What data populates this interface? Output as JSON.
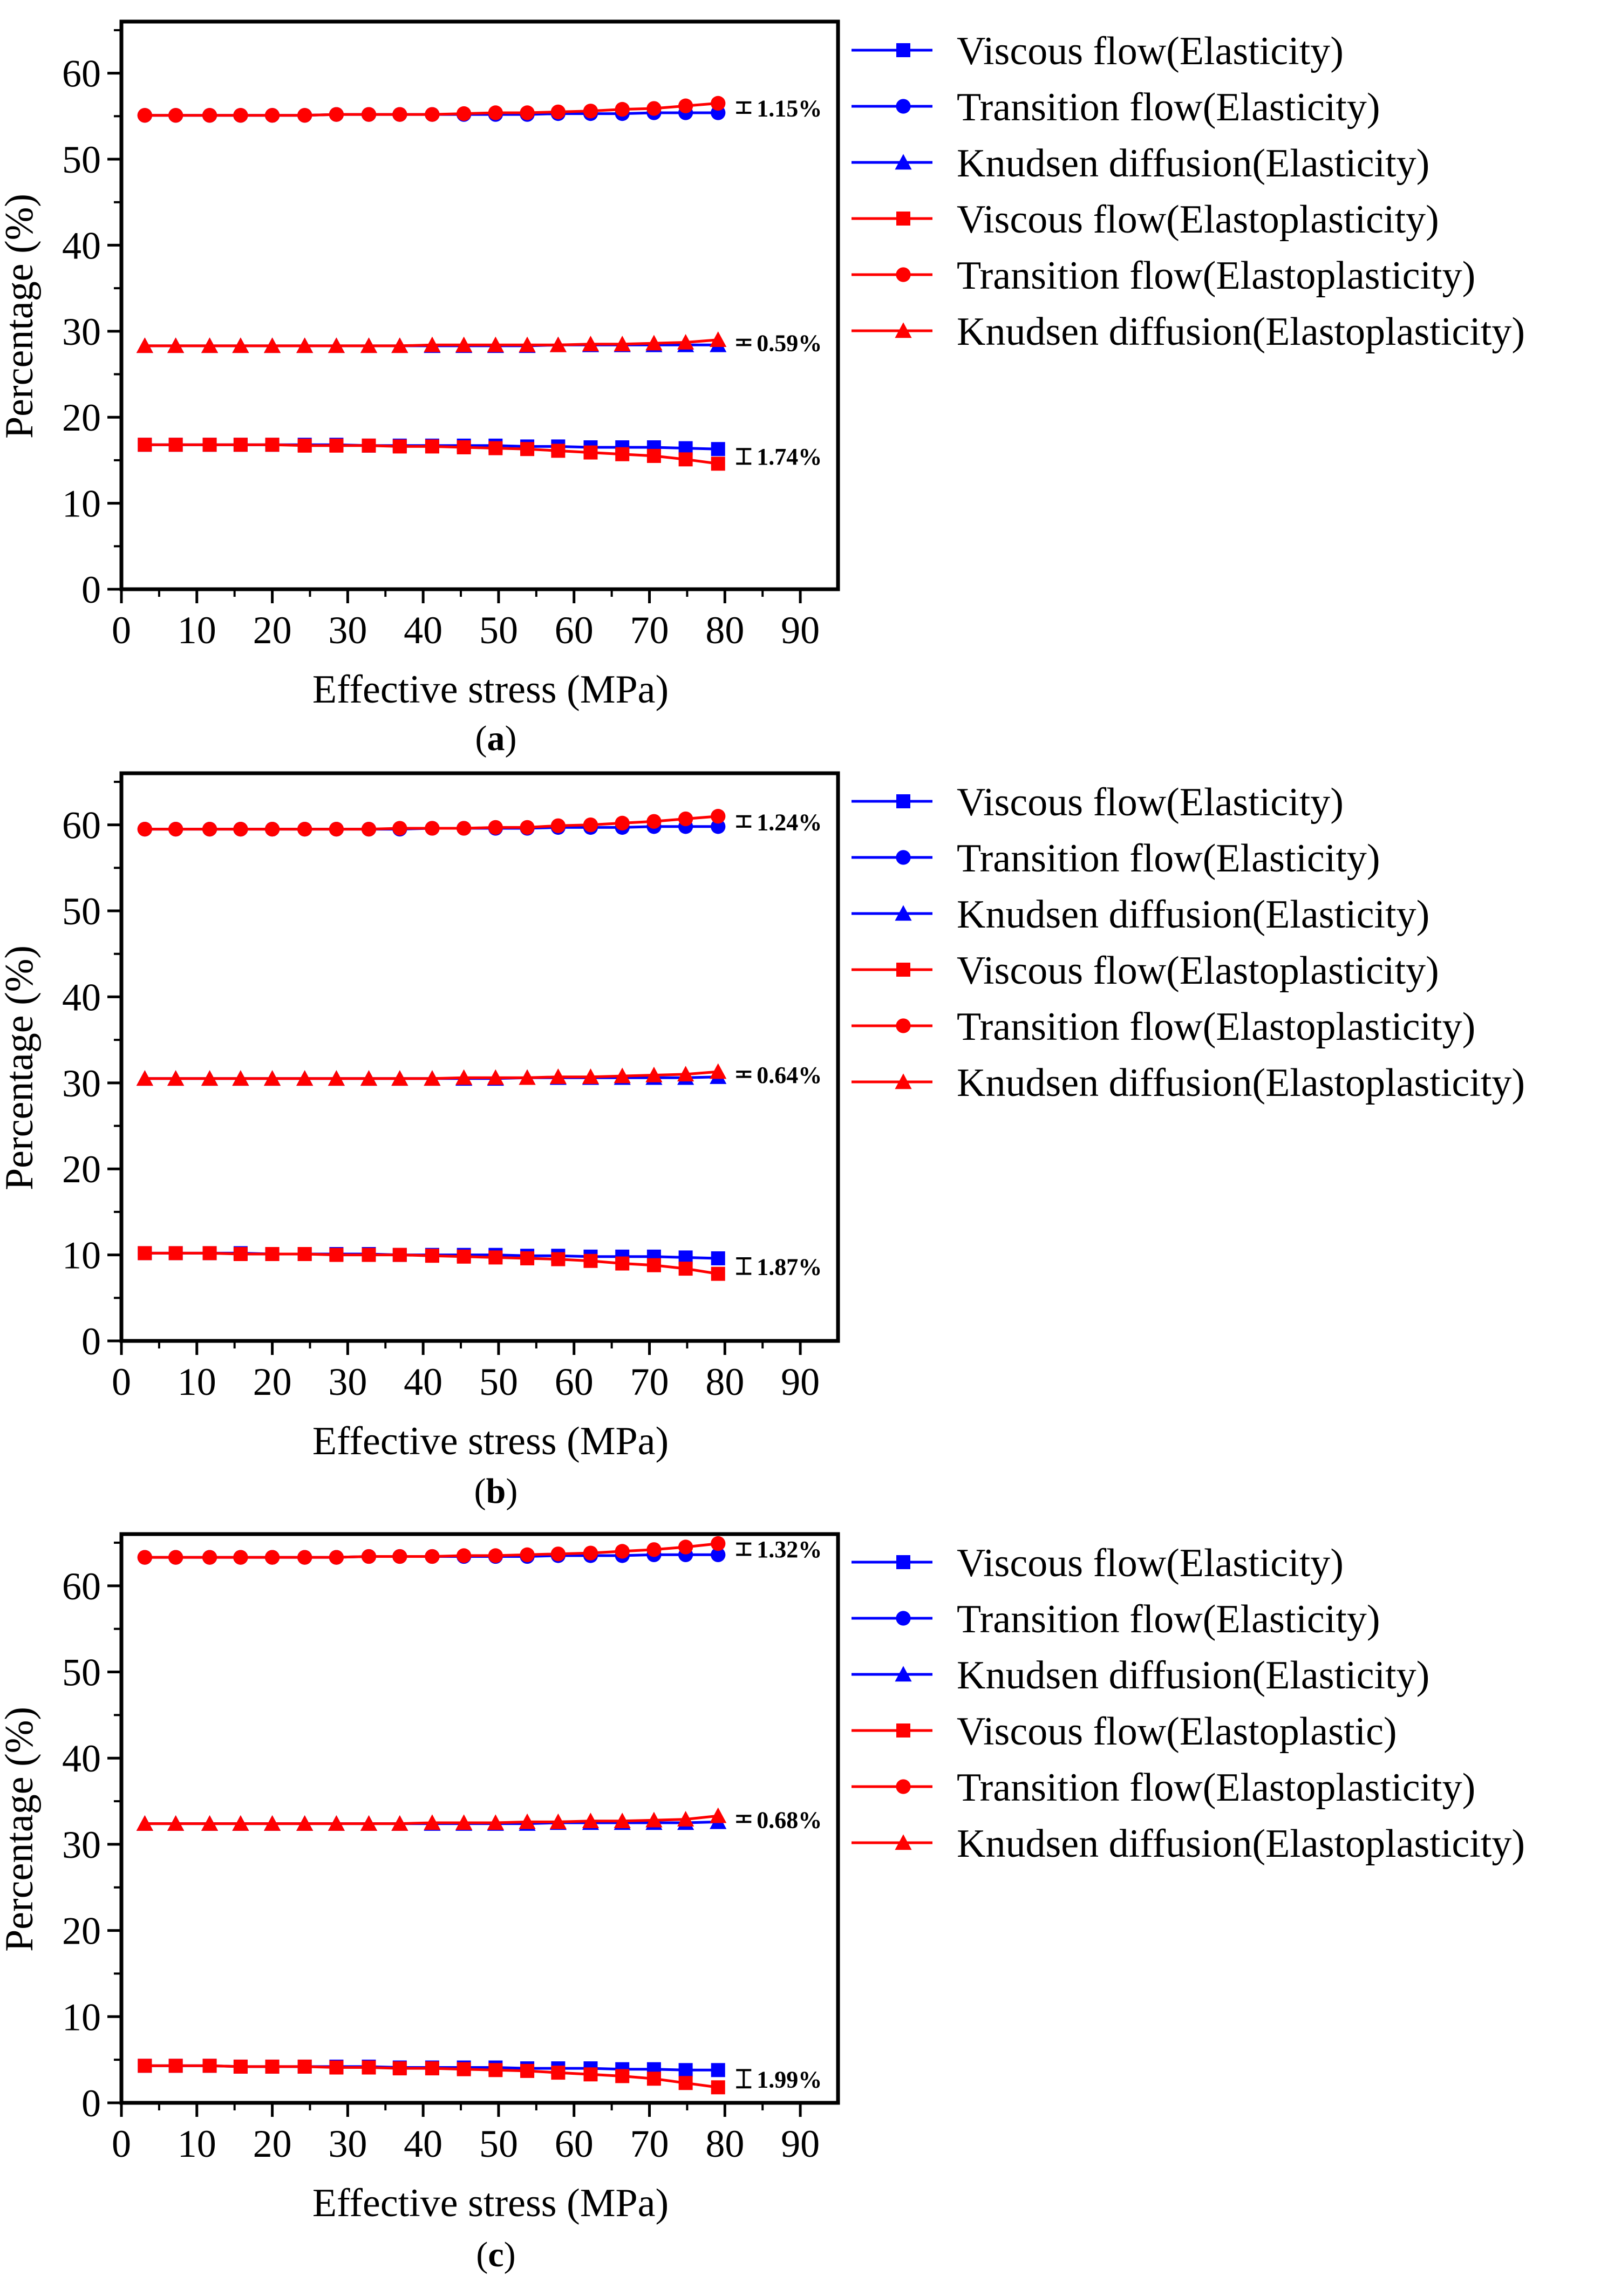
{
  "figure": {
    "panels": [
      "a",
      "b",
      "c"
    ]
  },
  "colors": {
    "elasticity": "#0000FF",
    "elastoplasticity": "#FF0000",
    "axis": "#000000",
    "errorbar": "#000000"
  },
  "chart_data": [
    {
      "panel_label": "a",
      "caption": {
        "open": "(",
        "letter": "a",
        "close": ")"
      },
      "type": "line",
      "xlabel": "Effective stress (MPa)",
      "ylabel": "Percentage (%)",
      "xlim": [
        0,
        95
      ],
      "ylim": [
        0,
        66
      ],
      "xticks": [
        0,
        10,
        20,
        30,
        40,
        50,
        60,
        70,
        80,
        90
      ],
      "yticks": [
        0,
        10,
        20,
        30,
        40,
        50,
        60
      ],
      "grid": false,
      "legend_position": "right",
      "x": [
        3.1,
        7.2,
        11.7,
        15.8,
        20.0,
        24.3,
        28.5,
        32.8,
        36.9,
        41.2,
        45.4,
        49.6,
        53.8,
        57.9,
        62.2,
        66.4,
        70.6,
        74.8,
        79.1
      ],
      "series": [
        {
          "name": "Viscous flow(Elasticity)",
          "color": "#0000FF",
          "marker": "square",
          "values": [
            16.8,
            16.8,
            16.8,
            16.8,
            16.8,
            16.8,
            16.8,
            16.7,
            16.7,
            16.7,
            16.7,
            16.7,
            16.6,
            16.6,
            16.5,
            16.5,
            16.5,
            16.4,
            16.3
          ]
        },
        {
          "name": "Transition flow(Elasticity)",
          "color": "#0000FF",
          "marker": "circle",
          "values": [
            55.1,
            55.1,
            55.1,
            55.1,
            55.1,
            55.1,
            55.2,
            55.2,
            55.2,
            55.2,
            55.2,
            55.2,
            55.2,
            55.3,
            55.3,
            55.3,
            55.4,
            55.4,
            55.4
          ]
        },
        {
          "name": "Knudsen diffusion(Elasticity)",
          "color": "#0000FF",
          "marker": "triangle",
          "values": [
            28.3,
            28.3,
            28.3,
            28.3,
            28.3,
            28.3,
            28.3,
            28.3,
            28.3,
            28.3,
            28.3,
            28.3,
            28.3,
            28.4,
            28.4,
            28.4,
            28.4,
            28.4,
            28.4
          ]
        },
        {
          "name": "Viscous flow(Elastoplasticity)",
          "color": "#FF0000",
          "marker": "square",
          "values": [
            16.8,
            16.8,
            16.8,
            16.8,
            16.8,
            16.7,
            16.7,
            16.7,
            16.6,
            16.6,
            16.5,
            16.4,
            16.3,
            16.1,
            15.9,
            15.7,
            15.5,
            15.1,
            14.6
          ]
        },
        {
          "name": "Transition flow(Elastoplasticity)",
          "color": "#FF0000",
          "marker": "circle",
          "values": [
            55.1,
            55.1,
            55.1,
            55.1,
            55.1,
            55.1,
            55.2,
            55.2,
            55.2,
            55.2,
            55.3,
            55.4,
            55.4,
            55.5,
            55.6,
            55.8,
            55.9,
            56.2,
            56.5
          ]
        },
        {
          "name": "Knudsen diffusion(Elastoplasticity)",
          "color": "#FF0000",
          "marker": "triangle",
          "values": [
            28.3,
            28.3,
            28.3,
            28.3,
            28.3,
            28.3,
            28.3,
            28.3,
            28.3,
            28.4,
            28.4,
            28.4,
            28.4,
            28.4,
            28.5,
            28.5,
            28.6,
            28.7,
            29.0
          ]
        }
      ],
      "annotations": [
        {
          "text": "1.15%",
          "x": 82.5,
          "y": 56.0,
          "err_low": 55.4,
          "err_high": 56.6
        },
        {
          "text": "0.59%",
          "x": 82.5,
          "y": 28.7,
          "err_low": 28.4,
          "err_high": 29.0
        },
        {
          "text": "1.74%",
          "x": 82.5,
          "y": 15.5,
          "err_low": 14.6,
          "err_high": 16.3
        }
      ]
    },
    {
      "panel_label": "b",
      "caption": {
        "open": "(",
        "letter": "b",
        "close": ")"
      },
      "type": "line",
      "xlabel": "Effective stress (MPa)",
      "ylabel": "Percentage (%)",
      "xlim": [
        0,
        95
      ],
      "ylim": [
        0,
        66
      ],
      "xticks": [
        0,
        10,
        20,
        30,
        40,
        50,
        60,
        70,
        80,
        90
      ],
      "yticks": [
        0,
        10,
        20,
        30,
        40,
        50,
        60
      ],
      "grid": false,
      "legend_position": "right",
      "x": [
        3.1,
        7.2,
        11.7,
        15.8,
        20.0,
        24.3,
        28.5,
        32.8,
        36.9,
        41.2,
        45.4,
        49.6,
        53.8,
        57.9,
        62.2,
        66.4,
        70.6,
        74.8,
        79.1
      ],
      "series": [
        {
          "name": "Viscous flow(Elasticity)",
          "color": "#0000FF",
          "marker": "square",
          "values": [
            10.2,
            10.2,
            10.2,
            10.2,
            10.1,
            10.1,
            10.1,
            10.1,
            10.0,
            10.0,
            10.0,
            10.0,
            9.9,
            9.9,
            9.8,
            9.8,
            9.8,
            9.7,
            9.6
          ]
        },
        {
          "name": "Transition flow(Elasticity)",
          "color": "#0000FF",
          "marker": "circle",
          "values": [
            59.5,
            59.5,
            59.5,
            59.5,
            59.5,
            59.5,
            59.5,
            59.5,
            59.5,
            59.6,
            59.6,
            59.6,
            59.6,
            59.7,
            59.7,
            59.7,
            59.8,
            59.8,
            59.8
          ]
        },
        {
          "name": "Knudsen diffusion(Elasticity)",
          "color": "#0000FF",
          "marker": "triangle",
          "values": [
            30.5,
            30.5,
            30.5,
            30.5,
            30.5,
            30.5,
            30.5,
            30.5,
            30.5,
            30.5,
            30.5,
            30.5,
            30.6,
            30.6,
            30.6,
            30.6,
            30.6,
            30.6,
            30.7
          ]
        },
        {
          "name": "Viscous flow(Elastoplasticity)",
          "color": "#FF0000",
          "marker": "square",
          "values": [
            10.2,
            10.2,
            10.2,
            10.1,
            10.1,
            10.1,
            10.0,
            10.0,
            10.0,
            9.9,
            9.8,
            9.7,
            9.6,
            9.5,
            9.3,
            9.0,
            8.8,
            8.4,
            7.8
          ]
        },
        {
          "name": "Transition flow(Elastoplasticity)",
          "color": "#FF0000",
          "marker": "circle",
          "values": [
            59.5,
            59.5,
            59.5,
            59.5,
            59.5,
            59.5,
            59.5,
            59.5,
            59.6,
            59.6,
            59.6,
            59.7,
            59.7,
            59.9,
            60.0,
            60.2,
            60.4,
            60.7,
            61.0
          ]
        },
        {
          "name": "Knudsen diffusion(Elastoplasticity)",
          "color": "#FF0000",
          "marker": "triangle",
          "values": [
            30.5,
            30.5,
            30.5,
            30.5,
            30.5,
            30.5,
            30.5,
            30.5,
            30.5,
            30.5,
            30.6,
            30.6,
            30.6,
            30.7,
            30.7,
            30.8,
            30.9,
            31.0,
            31.3
          ]
        }
      ],
      "annotations": [
        {
          "text": "1.24%",
          "x": 82.5,
          "y": 60.4,
          "err_low": 59.8,
          "err_high": 61.0
        },
        {
          "text": "0.64%",
          "x": 82.5,
          "y": 31.0,
          "err_low": 30.7,
          "err_high": 31.3
        },
        {
          "text": "1.87%",
          "x": 82.5,
          "y": 8.7,
          "err_low": 7.8,
          "err_high": 9.6
        }
      ]
    },
    {
      "panel_label": "c",
      "caption": {
        "open": "(",
        "letter": "c",
        "close": ")"
      },
      "type": "line",
      "xlabel": "Effective stress (MPa)",
      "ylabel": "Percentage (%)",
      "xlim": [
        0,
        95
      ],
      "ylim": [
        0,
        66
      ],
      "xticks": [
        0,
        10,
        20,
        30,
        40,
        50,
        60,
        70,
        80,
        90
      ],
      "yticks": [
        0,
        10,
        20,
        30,
        40,
        50,
        60
      ],
      "grid": false,
      "legend_position": "right",
      "x": [
        3.1,
        7.2,
        11.7,
        15.8,
        20.0,
        24.3,
        28.5,
        32.8,
        36.9,
        41.2,
        45.4,
        49.6,
        53.8,
        57.9,
        62.2,
        66.4,
        70.6,
        74.8,
        79.1
      ],
      "series": [
        {
          "name": "Viscous flow(Elasticity)",
          "color": "#0000FF",
          "marker": "square",
          "values": [
            4.3,
            4.3,
            4.3,
            4.2,
            4.2,
            4.2,
            4.2,
            4.2,
            4.1,
            4.1,
            4.1,
            4.1,
            4.0,
            4.0,
            4.0,
            3.9,
            3.9,
            3.8,
            3.8
          ]
        },
        {
          "name": "Transition flow(Elasticity)",
          "color": "#0000FF",
          "marker": "circle",
          "values": [
            63.3,
            63.3,
            63.3,
            63.3,
            63.3,
            63.3,
            63.3,
            63.4,
            63.4,
            63.4,
            63.4,
            63.4,
            63.4,
            63.5,
            63.5,
            63.5,
            63.6,
            63.6,
            63.6
          ]
        },
        {
          "name": "Knudsen diffusion(Elasticity)",
          "color": "#0000FF",
          "marker": "triangle",
          "values": [
            32.4,
            32.4,
            32.4,
            32.4,
            32.4,
            32.4,
            32.4,
            32.4,
            32.4,
            32.4,
            32.4,
            32.4,
            32.4,
            32.5,
            32.5,
            32.5,
            32.5,
            32.5,
            32.6
          ]
        },
        {
          "name": "Viscous flow(Elastoplastic)",
          "color": "#FF0000",
          "marker": "square",
          "values": [
            4.3,
            4.3,
            4.3,
            4.2,
            4.2,
            4.2,
            4.1,
            4.1,
            4.0,
            4.0,
            3.9,
            3.8,
            3.7,
            3.5,
            3.3,
            3.1,
            2.8,
            2.3,
            1.8
          ]
        },
        {
          "name": "Transition flow(Elastoplasticity)",
          "color": "#FF0000",
          "marker": "circle",
          "values": [
            63.3,
            63.3,
            63.3,
            63.3,
            63.3,
            63.3,
            63.3,
            63.4,
            63.4,
            63.4,
            63.5,
            63.5,
            63.6,
            63.7,
            63.8,
            64.0,
            64.2,
            64.5,
            64.9
          ]
        },
        {
          "name": "Knudsen diffusion(Elastoplasticity)",
          "color": "#FF0000",
          "marker": "triangle",
          "values": [
            32.4,
            32.4,
            32.4,
            32.4,
            32.4,
            32.4,
            32.4,
            32.4,
            32.4,
            32.5,
            32.5,
            32.5,
            32.6,
            32.6,
            32.7,
            32.7,
            32.8,
            32.9,
            33.3
          ]
        }
      ],
      "annotations": [
        {
          "text": "1.32%",
          "x": 82.5,
          "y": 64.3,
          "err_low": 63.6,
          "err_high": 64.9
        },
        {
          "text": "0.68%",
          "x": 82.5,
          "y": 32.9,
          "err_low": 32.6,
          "err_high": 33.3
        },
        {
          "text": "1.99%",
          "x": 82.5,
          "y": 2.8,
          "err_low": 1.8,
          "err_high": 3.8
        }
      ]
    }
  ]
}
